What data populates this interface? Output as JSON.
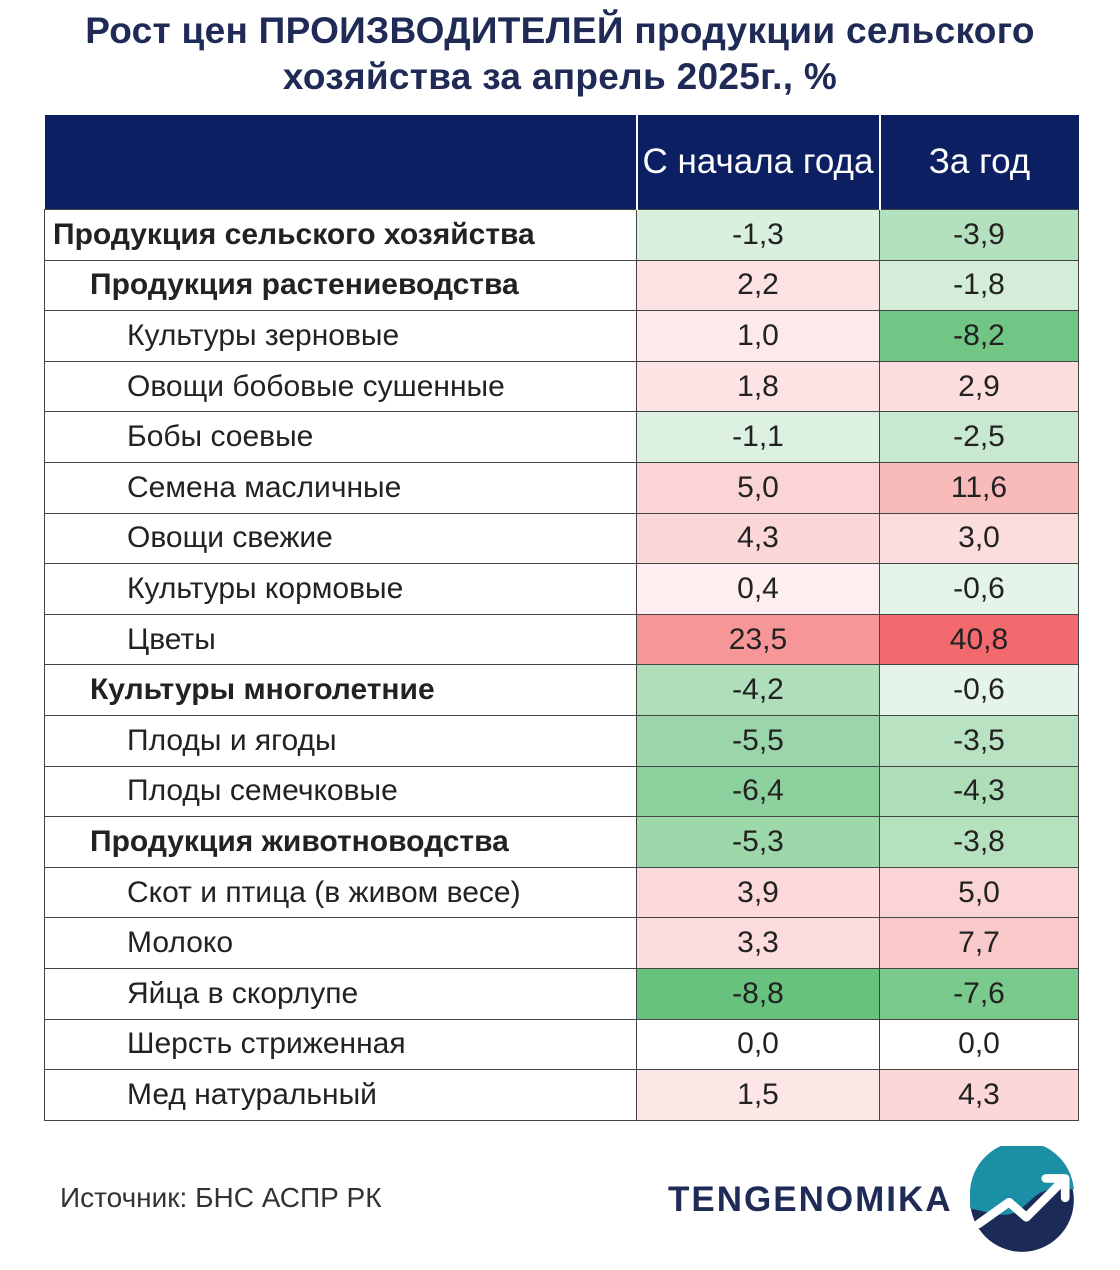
{
  "title_line1": "Рост цен ПРОИЗВОДИТЕЛЕЙ продукции сельского",
  "title_line2": "хозяйства за апрель 2025г., %",
  "header": {
    "col0": "",
    "col1": "С начала года",
    "col2": "За год"
  },
  "colors": {
    "header_bg": "#0c1f63",
    "positive": "#f15a5e",
    "negative": "#57bb6f",
    "title": "#1f2a56"
  },
  "chart_data": {
    "type": "table",
    "columns": [
      "С начала года",
      "За год"
    ],
    "rows": [
      {
        "label": "Продукция сельского хозяйства",
        "level": 0,
        "ytd": "-1,3",
        "yoy": "-3,9",
        "ytd_value": -1.3,
        "yoy_value": -3.9
      },
      {
        "label": "Продукция растениеводства",
        "level": 1,
        "ytd": "2,2",
        "yoy": "-1,8",
        "ytd_value": 2.2,
        "yoy_value": -1.8
      },
      {
        "label": "Культуры зерновые",
        "level": 2,
        "ytd": "1,0",
        "yoy": "-8,2",
        "ytd_value": 1.0,
        "yoy_value": -8.2
      },
      {
        "label": "Овощи бобовые сушенные",
        "level": 2,
        "ytd": "1,8",
        "yoy": "2,9",
        "ytd_value": 1.8,
        "yoy_value": 2.9
      },
      {
        "label": "Бобы соевые",
        "level": 2,
        "ytd": "-1,1",
        "yoy": "-2,5",
        "ytd_value": -1.1,
        "yoy_value": -2.5
      },
      {
        "label": "Семена масличные",
        "level": 2,
        "ytd": "5,0",
        "yoy": "11,6",
        "ytd_value": 5.0,
        "yoy_value": 11.6
      },
      {
        "label": "Овощи свежие",
        "level": 2,
        "ytd": "4,3",
        "yoy": "3,0",
        "ytd_value": 4.3,
        "yoy_value": 3.0
      },
      {
        "label": "Культуры кормовые",
        "level": 2,
        "ytd": "0,4",
        "yoy": "-0,6",
        "ytd_value": 0.4,
        "yoy_value": -0.6
      },
      {
        "label": "Цветы",
        "level": 2,
        "ytd": "23,5",
        "yoy": "40,8",
        "ytd_value": 23.5,
        "yoy_value": 40.8
      },
      {
        "label": "Культуры многолетние",
        "level": 1,
        "ytd": "-4,2",
        "yoy": "-0,6",
        "ytd_value": -4.2,
        "yoy_value": -0.6
      },
      {
        "label": "Плоды и ягоды",
        "level": 2,
        "ytd": "-5,5",
        "yoy": "-3,5",
        "ytd_value": -5.5,
        "yoy_value": -3.5
      },
      {
        "label": "Плоды семечковые",
        "level": 2,
        "ytd": "-6,4",
        "yoy": "-4,3",
        "ytd_value": -6.4,
        "yoy_value": -4.3
      },
      {
        "label": "Продукция животноводства",
        "level": 1,
        "ytd": "-5,3",
        "yoy": "-3,8",
        "ytd_value": -5.3,
        "yoy_value": -3.8
      },
      {
        "label": "Скот и птица (в живом весе)",
        "level": 2,
        "ytd": "3,9",
        "yoy": "5,0",
        "ytd_value": 3.9,
        "yoy_value": 5.0
      },
      {
        "label": "Молоко",
        "level": 2,
        "ytd": "3,3",
        "yoy": "7,7",
        "ytd_value": 3.3,
        "yoy_value": 7.7
      },
      {
        "label": "Яйца в скорлупе",
        "level": 2,
        "ytd": "-8,8",
        "yoy": "-7,6",
        "ytd_value": -8.8,
        "yoy_value": -7.6
      },
      {
        "label": "Шерсть стриженная",
        "level": 2,
        "ytd": "0,0",
        "yoy": "0,0",
        "ytd_value": 0.0,
        "yoy_value": 0.0
      },
      {
        "label": "Мед натуральный",
        "level": 2,
        "ytd": "1,5",
        "yoy": "4,3",
        "ytd_value": 1.5,
        "yoy_value": 4.3
      }
    ]
  },
  "footer": {
    "source": "Источник: БНС АСПР РК",
    "brand": "TENGENOMIKA"
  },
  "logo": {
    "icon": "tengenomika-logo-icon"
  }
}
